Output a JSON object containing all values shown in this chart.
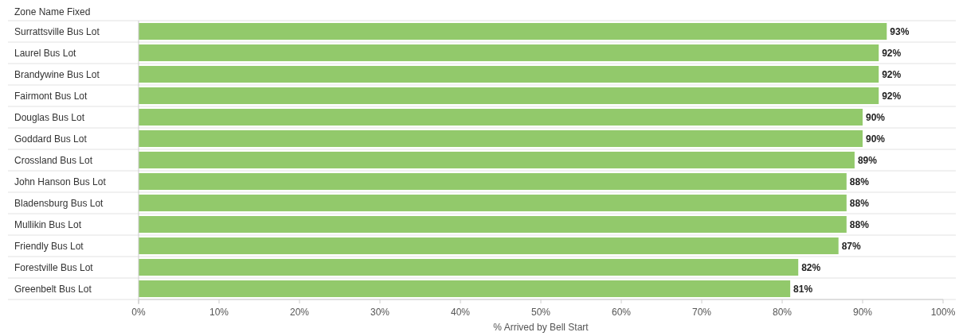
{
  "chart_data": {
    "type": "bar",
    "orientation": "horizontal",
    "ylabel": "Zone Name Fixed",
    "xlabel": "% Arrived by Bell Start",
    "categories": [
      "Surrattsville Bus Lot",
      "Laurel Bus Lot",
      "Brandywine Bus Lot",
      "Fairmont Bus Lot",
      "Douglas Bus Lot",
      "Goddard Bus Lot",
      "Crossland Bus Lot",
      "John Hanson Bus Lot",
      "Bladensburg Bus Lot",
      "Mullikin Bus Lot",
      "Friendly Bus Lot",
      "Forestville Bus Lot",
      "Greenbelt Bus Lot"
    ],
    "values": [
      93,
      92,
      92,
      92,
      90,
      90,
      89,
      88,
      88,
      88,
      87,
      82,
      81
    ],
    "value_labels": [
      "93%",
      "92%",
      "92%",
      "92%",
      "90%",
      "90%",
      "89%",
      "88%",
      "88%",
      "88%",
      "87%",
      "82%",
      "81%"
    ],
    "color": "#92c96b",
    "xlim": [
      0,
      100
    ],
    "xticks": [
      {
        "value": 0,
        "label": "0%"
      },
      {
        "value": 10,
        "label": "10%"
      },
      {
        "value": 20,
        "label": "20%"
      },
      {
        "value": 30,
        "label": "30%"
      },
      {
        "value": 40,
        "label": "40%"
      },
      {
        "value": 50,
        "label": "50%"
      },
      {
        "value": 60,
        "label": "60%"
      },
      {
        "value": 70,
        "label": "70%"
      },
      {
        "value": 80,
        "label": "80%"
      },
      {
        "value": 90,
        "label": "90%"
      },
      {
        "value": 100,
        "label": "100%"
      }
    ],
    "grid": false
  }
}
